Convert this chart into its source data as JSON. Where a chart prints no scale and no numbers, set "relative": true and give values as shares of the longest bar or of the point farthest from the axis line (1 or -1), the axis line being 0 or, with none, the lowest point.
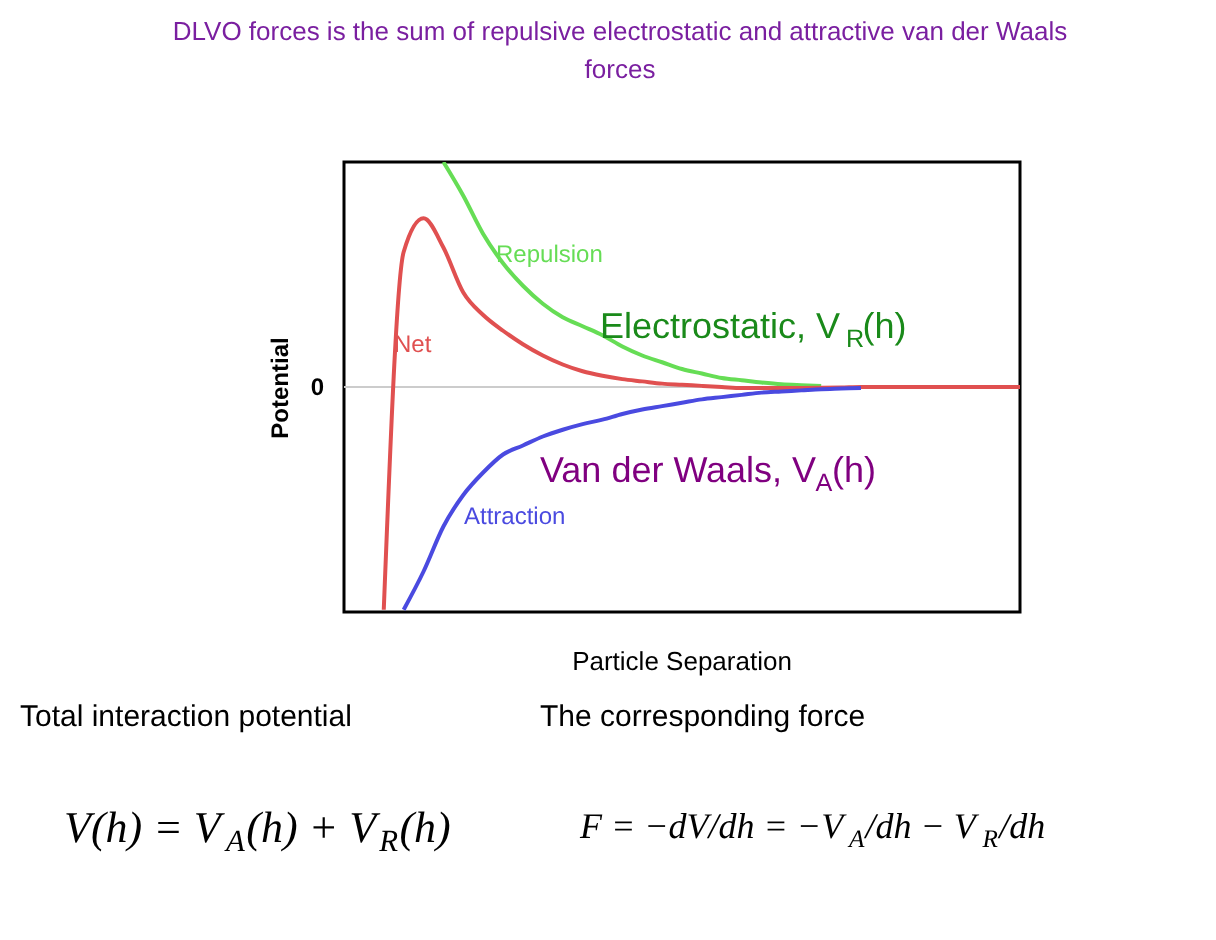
{
  "chart_data": {
    "type": "line",
    "title": "DLVO forces is the sum of repulsive electrostatic and attractive van der Waals forces",
    "xlabel": "Particle Separation",
    "ylabel": "Potential",
    "relative": true,
    "legend": false,
    "marker": "none",
    "line_style": "solid",
    "categories": [
      null,
      null,
      null,
      null,
      null,
      null,
      null,
      null,
      null,
      null,
      null,
      null,
      null,
      null,
      null,
      null,
      null,
      null,
      null,
      null,
      null,
      null,
      null,
      null,
      null,
      null,
      null,
      null,
      null,
      null,
      null,
      null,
      null,
      null,
      null
    ],
    "series": [
      {
        "name": "Repulsion",
        "color": "#66dd55",
        "values": [
          null,
          null,
          null,
          null,
          null,
          1.0,
          0.85,
          0.68,
          0.55,
          0.45,
          0.37,
          0.31,
          0.27,
          0.23,
          0.18,
          0.14,
          0.11,
          0.08,
          0.06,
          0.04,
          0.03,
          0.02,
          0.012,
          0.008,
          0.005,
          null,
          null,
          null,
          null,
          null,
          null,
          null,
          null,
          null,
          null
        ]
      },
      {
        "name": "Net",
        "color": "#e05050",
        "values": [
          null,
          null,
          -0.99,
          0.6,
          0.75,
          0.62,
          0.42,
          0.32,
          0.25,
          0.19,
          0.14,
          0.1,
          0.07,
          0.05,
          0.035,
          0.025,
          0.015,
          0.01,
          0.005,
          0,
          -0.005,
          -0.005,
          -0.005,
          -0.004,
          -0.003,
          -0.002,
          0,
          0,
          0,
          0,
          0,
          0,
          0,
          0,
          0
        ]
      },
      {
        "name": "Attraction",
        "color": "#4a4ae0",
        "values": [
          null,
          null,
          null,
          -0.99,
          -0.82,
          -0.62,
          -0.48,
          -0.38,
          -0.3,
          -0.26,
          -0.22,
          -0.19,
          -0.165,
          -0.145,
          -0.12,
          -0.1,
          -0.085,
          -0.07,
          -0.055,
          -0.045,
          -0.035,
          -0.025,
          -0.02,
          -0.015,
          -0.01,
          -0.007,
          -0.004,
          null,
          null,
          null,
          null,
          null,
          null,
          null,
          null
        ]
      }
    ],
    "ref_lines": [
      {
        "axis": "y",
        "value": 0,
        "label": "0",
        "color": "#cccccc"
      }
    ],
    "annotations": [
      "Electrostatic, V$_{R}$(h)",
      "Van der Waals, V$_{A}$(h)",
      "Total interaction potential",
      "The corresponding force",
      "V(h) = V$_{A}$(h) + V$_{R}$(h)",
      "F = −dV/dh = −V$_{A}$/dh − V$_{R}$/dh"
    ]
  }
}
